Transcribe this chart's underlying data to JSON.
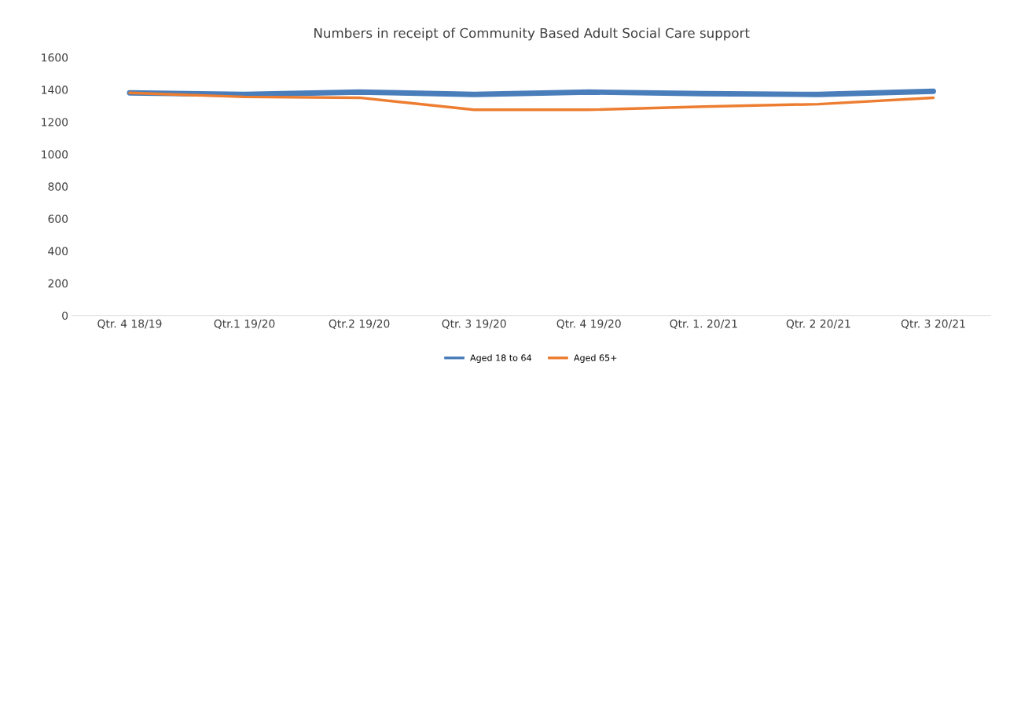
{
  "chart_data": {
    "type": "line",
    "title": "Numbers in receipt of Community Based Adult Social Care support",
    "categories": [
      "Qtr. 4 18/19",
      "Qtr.1 19/20",
      "Qtr.2 19/20",
      "Qtr. 3 19/20",
      "Qtr. 4 19/20",
      "Qtr. 1. 20/21",
      "Qtr. 2 20/21",
      "Qtr. 3 20/21"
    ],
    "series": [
      {
        "name": "Aged 18 to 64",
        "color": "#4a7ebb",
        "values": [
          1380,
          1370,
          1385,
          1370,
          1385,
          1375,
          1370,
          1390
        ]
      },
      {
        "name": "Aged 65+",
        "color": "#ed7d31",
        "values": [
          1380,
          1355,
          1350,
          1275,
          1275,
          1295,
          1310,
          1350
        ]
      }
    ],
    "ylim": [
      0,
      1600
    ],
    "yticks": [
      0,
      200,
      400,
      600,
      800,
      1000,
      1200,
      1400,
      1600
    ],
    "grid": false,
    "legend": "bottom",
    "marker": "none",
    "line_style": "solid"
  }
}
